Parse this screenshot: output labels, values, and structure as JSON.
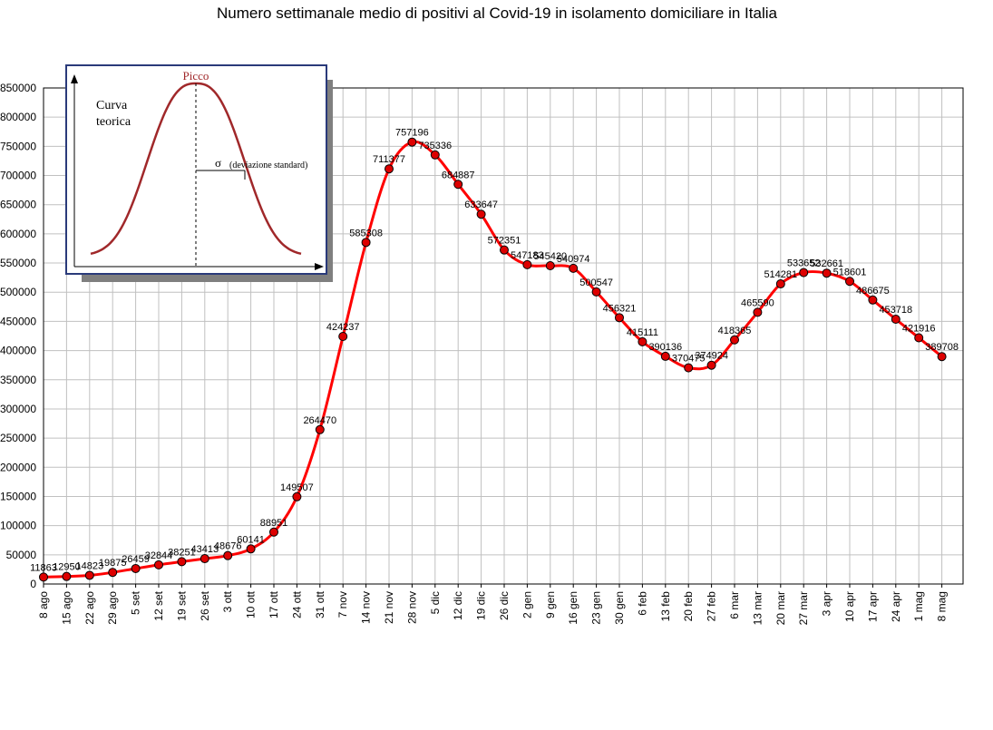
{
  "chart_data": {
    "type": "line",
    "title": "Numero settimanale medio di positivi al Covid-19  in isolamento domiciliare in Italia",
    "xlabel": "",
    "ylabel": "",
    "ylim": [
      0,
      850000
    ],
    "yticks": [
      0,
      50000,
      100000,
      150000,
      200000,
      250000,
      300000,
      350000,
      400000,
      450000,
      500000,
      550000,
      600000,
      650000,
      700000,
      750000,
      800000,
      850000
    ],
    "grid": true,
    "line_color": "#ff0000",
    "marker_color": "#dd0000",
    "categories": [
      "8 ago",
      "15 ago",
      "22 ago",
      "29 ago",
      "5 set",
      "12 set",
      "19 set",
      "26 set",
      "3 ott",
      "10 ott",
      "17 ott",
      "24 ott",
      "31 ott",
      "7 nov",
      "14 nov",
      "21 nov",
      "28 nov",
      "5 dic",
      "12 dic",
      "19 dic",
      "26 dic",
      "2 gen",
      "9 gen",
      "16 gen",
      "23 gen",
      "30 gen",
      "6 feb",
      "13 feb",
      "20 feb",
      "27 feb",
      "6 mar",
      "13 mar",
      "20 mar",
      "27 mar",
      "3 apr",
      "10 apr",
      "17 apr",
      "24 apr",
      "1 mag",
      "8 mag"
    ],
    "values": [
      11863,
      12950,
      14823,
      19875,
      26459,
      32844,
      38251,
      43413,
      48676,
      60141,
      88951,
      149507,
      264470,
      424237,
      585308,
      711377,
      757196,
      735336,
      684887,
      633647,
      572351,
      547183,
      545420,
      540974,
      500547,
      456321,
      415111,
      390136,
      370475,
      374924,
      418365,
      465590,
      514281,
      533652,
      532661,
      518601,
      486675,
      453718,
      421916,
      389708
    ],
    "data_labels": [
      "11863",
      "12950",
      "14823",
      "19875",
      "26459",
      "32844",
      "38251",
      "43413",
      "48676",
      "60141",
      "88951",
      "149507",
      "264470",
      "424237",
      "585308",
      "711377",
      "757196",
      "735336",
      "684887",
      "633647",
      "572351",
      "547183",
      "545420",
      "540974",
      "500547",
      "456321",
      "415111",
      "390136",
      "370475",
      "374924",
      "418365",
      "465590",
      "514281",
      "533652",
      "532661",
      "518601",
      "486675",
      "453718",
      "421916",
      "389708"
    ]
  },
  "inset": {
    "peak_label": "Picco",
    "curve_label_line1": "Curva",
    "curve_label_line2": "teorica",
    "sigma_symbol": "σ",
    "sigma_label": "(deviazione standard)",
    "curve_color": "#a0282a",
    "border_color": "#2a3a7a"
  }
}
